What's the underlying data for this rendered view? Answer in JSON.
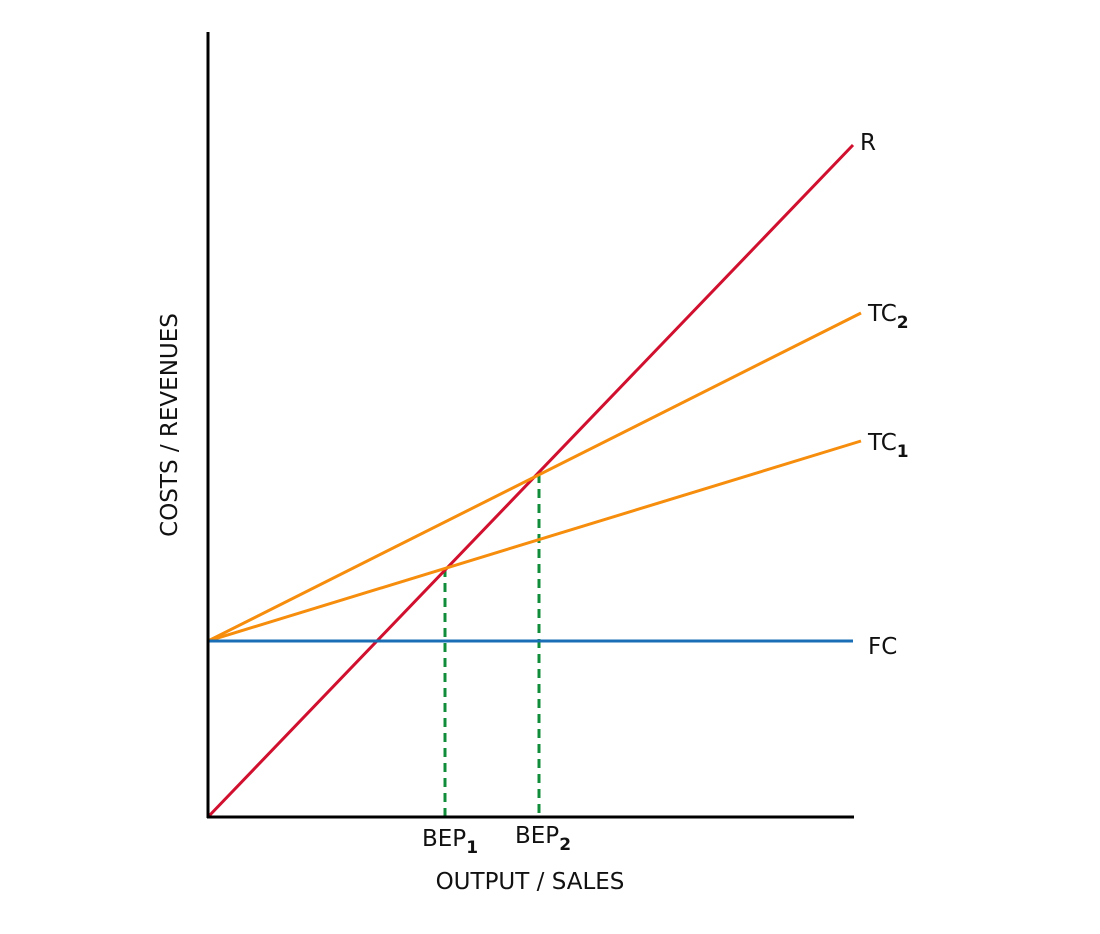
{
  "chart_data": {
    "type": "line",
    "title": "",
    "xlabel": "OUTPUT / SALES",
    "ylabel": "COSTS / REVENUES",
    "grid": false,
    "ticks": false,
    "series": [
      {
        "name": "R",
        "sub": "",
        "color": "#d0102e",
        "style": "solid"
      },
      {
        "name": "TC",
        "sub": "2",
        "color": "#f68d0d",
        "style": "solid"
      },
      {
        "name": "TC",
        "sub": "1",
        "color": "#f68d0d",
        "style": "solid"
      },
      {
        "name": "FC",
        "sub": "",
        "color": "#1a6eb5",
        "style": "solid"
      }
    ],
    "markers": [
      {
        "name": "BEP",
        "sub": "1",
        "color": "#108c3a",
        "style": "dashed"
      },
      {
        "name": "BEP",
        "sub": "2",
        "color": "#108c3a",
        "style": "dashed"
      }
    ],
    "axis_color": "#000000"
  }
}
